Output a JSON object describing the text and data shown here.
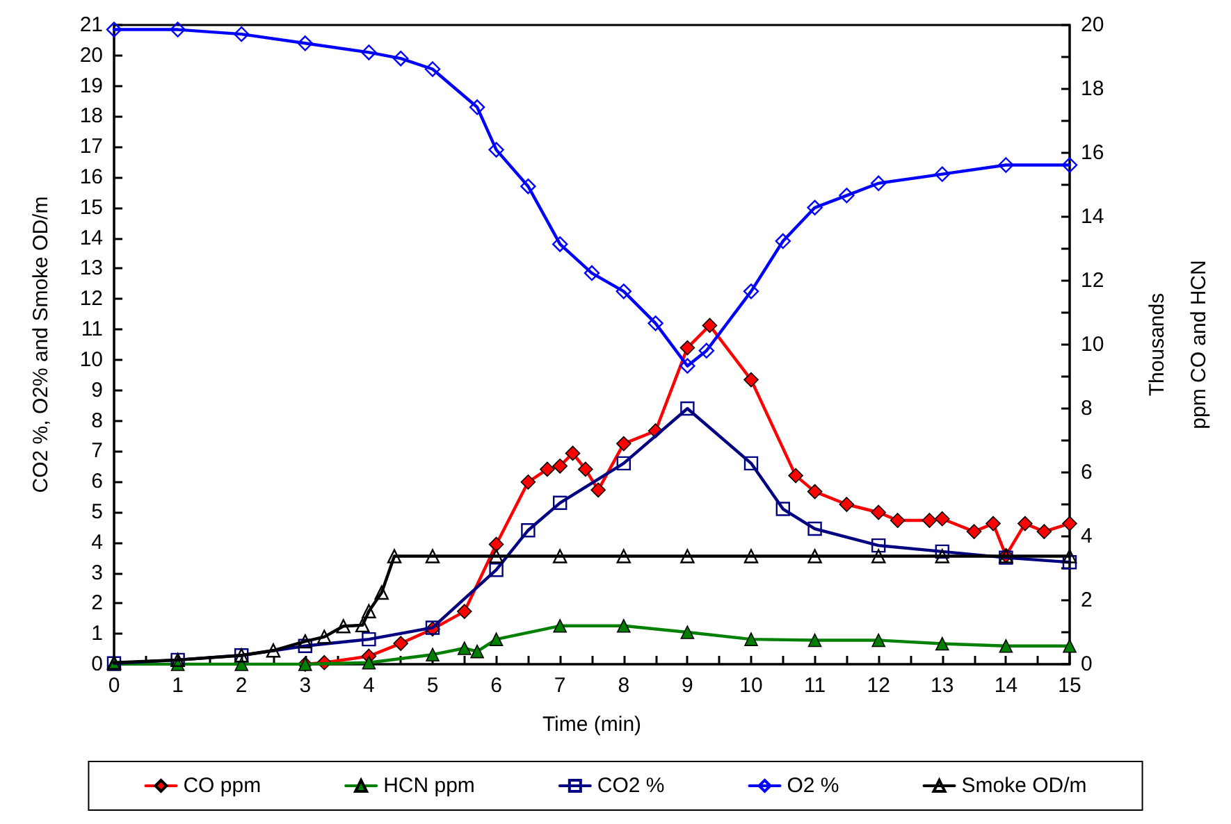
{
  "chart_data": {
    "type": "line",
    "xlabel": "Time (min)",
    "ylabel": "CO2 %, O2% and Smoke OD/m",
    "y2label": "Thousands\nppm CO and HCN",
    "xlim": [
      0,
      15
    ],
    "xticks": [
      0,
      {
        "value": 0.5,
        "label": null
      },
      1,
      {
        "value": 1.5,
        "label": null
      },
      2,
      {
        "value": 2.5,
        "label": null
      },
      3,
      {
        "value": 3.5,
        "label": null
      },
      4,
      {
        "value": 4.5,
        "label": null
      },
      5,
      {
        "value": 5.5,
        "label": null
      },
      6,
      {
        "value": 6.5,
        "label": null
      },
      7,
      {
        "value": 7.5,
        "label": null
      },
      8,
      {
        "value": 8.5,
        "label": null
      },
      9,
      {
        "value": 9.5,
        "label": null
      },
      10,
      {
        "value": 10.5,
        "label": null
      },
      11,
      {
        "value": 11.5,
        "label": null
      },
      12,
      {
        "value": 12.5,
        "label": null
      },
      13,
      {
        "value": 13.5,
        "label": null
      },
      14,
      {
        "value": 14.5,
        "label": null
      },
      15
    ],
    "ylim": [
      0,
      21
    ],
    "yticks": [
      0,
      1,
      2,
      3,
      4,
      5,
      6,
      7,
      8,
      9,
      10,
      11,
      12,
      13,
      14,
      15,
      16,
      17,
      18,
      19,
      20,
      21
    ],
    "y2lim": [
      0,
      20
    ],
    "y2ticks": [
      0,
      {
        "value": 1,
        "label": null
      },
      2,
      {
        "value": 3,
        "label": null
      },
      4,
      {
        "value": 5,
        "label": null
      },
      6,
      {
        "value": 7,
        "label": null
      },
      8,
      {
        "value": 9,
        "label": null
      },
      10,
      {
        "value": 11,
        "label": null
      },
      12,
      {
        "value": 13,
        "label": null
      },
      14,
      {
        "value": 15,
        "label": null
      },
      16,
      {
        "value": 17,
        "label": null
      },
      18,
      {
        "value": 19,
        "label": null
      },
      20
    ],
    "grid": false,
    "legend": "bottom",
    "line_style": "solid",
    "series": [
      {
        "name": "CO ppm",
        "color": "#ff0000",
        "marker": "diamond",
        "axis": "y2",
        "x": [
          3,
          3.3,
          4,
          4.5,
          5,
          5.5,
          6,
          6.5,
          6.8,
          7,
          7.2,
          7.4,
          7.6,
          8,
          8.5,
          9,
          9.35,
          10,
          10.7,
          11,
          11.5,
          12,
          12.3,
          12.8,
          13,
          13.5,
          13.8,
          14,
          14.3,
          14.6,
          15
        ],
        "values": [
          0,
          0.05,
          0.25,
          0.65,
          1.1,
          1.65,
          3.75,
          5.7,
          6.1,
          6.2,
          6.6,
          6.1,
          5.45,
          6.9,
          7.3,
          9.9,
          10.6,
          8.9,
          5.9,
          5.4,
          5.0,
          4.75,
          4.5,
          4.5,
          4.55,
          4.15,
          4.4,
          3.4,
          4.4,
          4.15,
          4.4
        ]
      },
      {
        "name": "HCN ppm",
        "color": "#008000",
        "marker": "triangle",
        "axis": "y2",
        "x": [
          0,
          1,
          2,
          3,
          4,
          5,
          5.5,
          5.7,
          6,
          7,
          8,
          9,
          10,
          11,
          12,
          13,
          14,
          15
        ],
        "values": [
          0,
          0,
          0,
          0,
          0.05,
          0.3,
          0.5,
          0.4,
          0.78,
          1.2,
          1.2,
          1.0,
          0.78,
          0.75,
          0.75,
          0.64,
          0.57,
          0.57
        ]
      },
      {
        "name": "CO2 %",
        "color": "#000080",
        "marker": "square",
        "x": [
          0,
          1,
          2,
          3,
          4,
          5,
          6,
          6.5,
          7,
          8,
          9,
          10,
          10.5,
          11,
          12,
          13,
          14,
          15
        ],
        "values": [
          0.03,
          0.14,
          0.29,
          0.6,
          0.82,
          1.2,
          3.1,
          4.4,
          5.3,
          6.6,
          8.4,
          6.6,
          5.1,
          4.45,
          3.9,
          3.7,
          3.5,
          3.35
        ]
      },
      {
        "name": "O2 %",
        "color": "#0000ff",
        "marker": "diamond",
        "x": [
          0,
          1,
          2,
          3,
          4,
          4.5,
          5,
          5.7,
          6,
          6.5,
          7,
          7.5,
          8,
          8.5,
          9,
          9.3,
          10,
          10.5,
          11,
          11.5,
          12,
          13,
          14,
          15
        ],
        "values": [
          20.85,
          20.85,
          20.7,
          20.4,
          20.1,
          19.9,
          19.55,
          18.3,
          16.9,
          15.7,
          13.8,
          12.85,
          12.25,
          11.2,
          9.8,
          10.3,
          12.25,
          13.9,
          15.0,
          15.4,
          15.8,
          16.1,
          16.4,
          16.4
        ]
      },
      {
        "name": "Smoke OD/m",
        "color": "#000000",
        "marker": "triangle",
        "x": [
          0,
          1,
          2,
          2.5,
          3,
          3.3,
          3.6,
          3.9,
          4,
          4.2,
          4.4,
          5,
          6,
          7,
          8,
          9,
          10,
          11,
          12,
          13,
          14,
          15
        ],
        "values": [
          0.05,
          0.14,
          0.29,
          0.45,
          0.75,
          0.9,
          1.25,
          1.28,
          1.74,
          2.35,
          3.55,
          3.55,
          3.55,
          3.55,
          3.55,
          3.55,
          3.55,
          3.55,
          3.55,
          3.55,
          3.55,
          3.55
        ]
      }
    ]
  }
}
